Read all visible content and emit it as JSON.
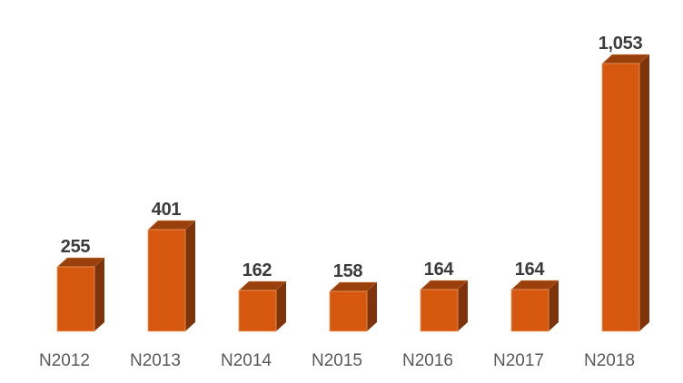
{
  "chart_data": {
    "type": "bar",
    "style": "3d-column",
    "title": "",
    "xlabel": "",
    "ylabel": "",
    "categories": [
      "N2012",
      "N2013",
      "N2014",
      "N2015",
      "N2016",
      "N2017",
      "N2018"
    ],
    "values": [
      255,
      401,
      162,
      158,
      164,
      164,
      1053
    ],
    "value_labels": [
      "255",
      "401",
      "162",
      "158",
      "164",
      "164",
      "1,053"
    ],
    "ylim": [
      0,
      1100
    ],
    "grid": false,
    "legend": false,
    "axes_visible": false,
    "data_labels_position": "above-bar",
    "colors": {
      "background": "#FFFFFF",
      "bar_front": "#D6570E",
      "bar_top": "#9A400D",
      "bar_side": "#7F330B",
      "bar_outline": "#EFA068",
      "value_label": "#3B3B3B",
      "category_label": "#595959"
    }
  }
}
